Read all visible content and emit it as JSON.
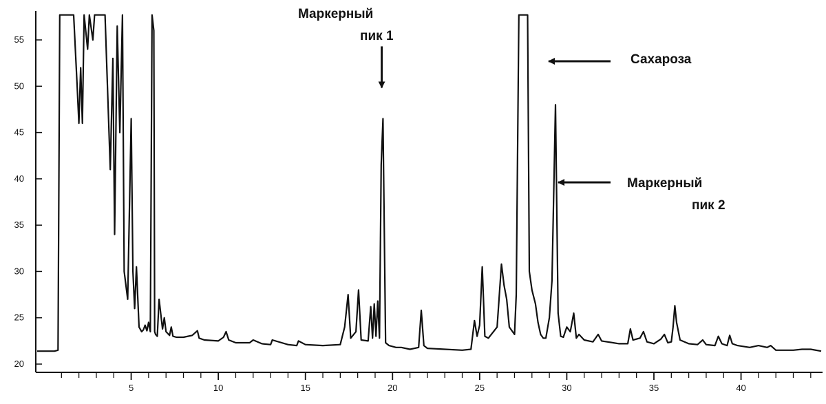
{
  "chart_data": {
    "type": "line",
    "title": "",
    "xlabel": "",
    "ylabel": "",
    "xlim": [
      -0.5,
      44.6
    ],
    "ylim": [
      20,
      57.7
    ],
    "grid": false,
    "x_ticks": [
      5,
      10,
      15,
      20,
      25,
      30,
      35,
      40
    ],
    "y_ticks": [
      20,
      25,
      30,
      35,
      40,
      45,
      50,
      55
    ],
    "series": [
      {
        "color": "#111111",
        "x": [
          -0.5,
          0.6,
          0.8,
          0.9,
          1.3,
          1.7,
          1.9,
          2.0,
          2.1,
          2.2,
          2.3,
          2.5,
          2.6,
          2.8,
          2.9,
          3.0,
          3.2,
          3.5,
          3.8,
          3.95,
          4.05,
          4.2,
          4.35,
          4.5,
          4.6,
          4.8,
          5.0,
          5.1,
          5.2,
          5.3,
          5.45,
          5.6,
          5.7,
          5.8,
          5.9,
          6.0,
          6.1,
          6.2,
          6.3,
          6.35,
          6.4,
          6.5,
          6.6,
          6.8,
          6.9,
          7.0,
          7.2,
          7.3,
          7.4,
          7.6,
          8.0,
          8.5,
          8.8,
          8.9,
          9.2,
          10.0,
          10.3,
          10.45,
          10.6,
          11.0,
          11.8,
          12.0,
          12.5,
          13.0,
          13.1,
          14.0,
          14.5,
          14.6,
          15.0,
          16.0,
          17.0,
          17.25,
          17.45,
          17.6,
          17.9,
          18.05,
          18.2,
          18.6,
          18.75,
          18.85,
          18.95,
          19.05,
          19.15,
          19.25,
          19.35,
          19.45,
          19.6,
          19.8,
          20.2,
          20.5,
          21.0,
          21.5,
          21.65,
          21.8,
          22.0,
          23.0,
          24.0,
          24.5,
          24.7,
          24.85,
          25.0,
          25.15,
          25.3,
          25.5,
          26.0,
          26.25,
          26.4,
          26.55,
          26.7,
          27.0,
          27.1,
          27.25,
          27.45,
          27.6,
          27.75,
          27.85,
          28.0,
          28.2,
          28.35,
          28.5,
          28.65,
          28.8,
          29.0,
          29.15,
          29.35,
          29.5,
          29.65,
          29.8,
          30.0,
          30.2,
          30.4,
          30.55,
          30.7,
          31.0,
          31.5,
          31.8,
          32.0,
          33.0,
          33.5,
          33.65,
          33.8,
          34.2,
          34.4,
          34.6,
          35.0,
          35.4,
          35.6,
          35.8,
          36.0,
          36.1,
          36.2,
          36.3,
          36.5,
          37.0,
          37.5,
          37.8,
          38.0,
          38.5,
          38.7,
          38.9,
          39.2,
          39.35,
          39.5,
          39.8,
          40.5,
          41.0,
          41.5,
          41.7,
          42.0,
          43.0,
          43.5,
          44.0,
          44.6
        ],
        "y": [
          21.4,
          21.4,
          21.5,
          57.7,
          57.7,
          57.7,
          50.0,
          46.0,
          52.0,
          46.0,
          57.7,
          54.0,
          57.7,
          55.0,
          57.7,
          57.7,
          57.7,
          57.7,
          41.0,
          53.0,
          34.0,
          56.5,
          45.0,
          57.7,
          30.0,
          27.0,
          46.5,
          30.0,
          26.0,
          30.5,
          24.0,
          23.5,
          23.7,
          24.2,
          23.6,
          24.5,
          23.5,
          57.7,
          56.0,
          23.5,
          23.2,
          23.0,
          27.0,
          23.8,
          25.0,
          23.5,
          23.1,
          24.0,
          23.0,
          22.9,
          22.9,
          23.1,
          23.6,
          22.8,
          22.6,
          22.5,
          22.9,
          23.5,
          22.6,
          22.3,
          22.3,
          22.6,
          22.2,
          22.1,
          22.6,
          22.1,
          22.0,
          22.5,
          22.1,
          22.0,
          22.1,
          24.0,
          27.5,
          22.8,
          23.5,
          28.0,
          22.6,
          22.5,
          26.2,
          22.8,
          26.5,
          23.0,
          26.8,
          22.8,
          41.5,
          46.5,
          22.3,
          22.0,
          21.8,
          21.8,
          21.6,
          21.8,
          25.8,
          22.0,
          21.7,
          21.6,
          21.5,
          21.6,
          24.7,
          23.0,
          24.2,
          30.5,
          23.0,
          22.8,
          24.0,
          30.8,
          28.5,
          27.0,
          24.0,
          23.2,
          27.5,
          57.7,
          57.7,
          57.7,
          57.7,
          30.0,
          28.0,
          26.5,
          24.5,
          23.2,
          22.8,
          22.8,
          25.0,
          29.0,
          48.0,
          25.5,
          23.0,
          22.9,
          24.0,
          23.5,
          25.5,
          22.8,
          23.2,
          22.6,
          22.4,
          23.2,
          22.5,
          22.2,
          22.2,
          23.8,
          22.6,
          22.8,
          23.5,
          22.4,
          22.2,
          22.7,
          23.2,
          22.3,
          22.4,
          24.0,
          26.3,
          24.5,
          22.6,
          22.2,
          22.1,
          22.6,
          22.1,
          22.0,
          23.0,
          22.2,
          22.0,
          23.1,
          22.2,
          22.0,
          21.8,
          22.0,
          21.8,
          22.0,
          21.5,
          21.5,
          21.6,
          21.6,
          21.4
        ]
      }
    ],
    "annotations": [
      {
        "label_lines": [
          "Маркерный",
          "пик 1"
        ],
        "x": 19.3,
        "y": 46.5,
        "arrow": "down"
      },
      {
        "label_lines": [
          "Сахароза"
        ],
        "x": 28.0,
        "y": 57.7,
        "arrow": "left"
      },
      {
        "label_lines": [
          "Маркерный",
          "пик 2"
        ],
        "x": 29.35,
        "y": 48.0,
        "arrow": "left"
      }
    ]
  }
}
